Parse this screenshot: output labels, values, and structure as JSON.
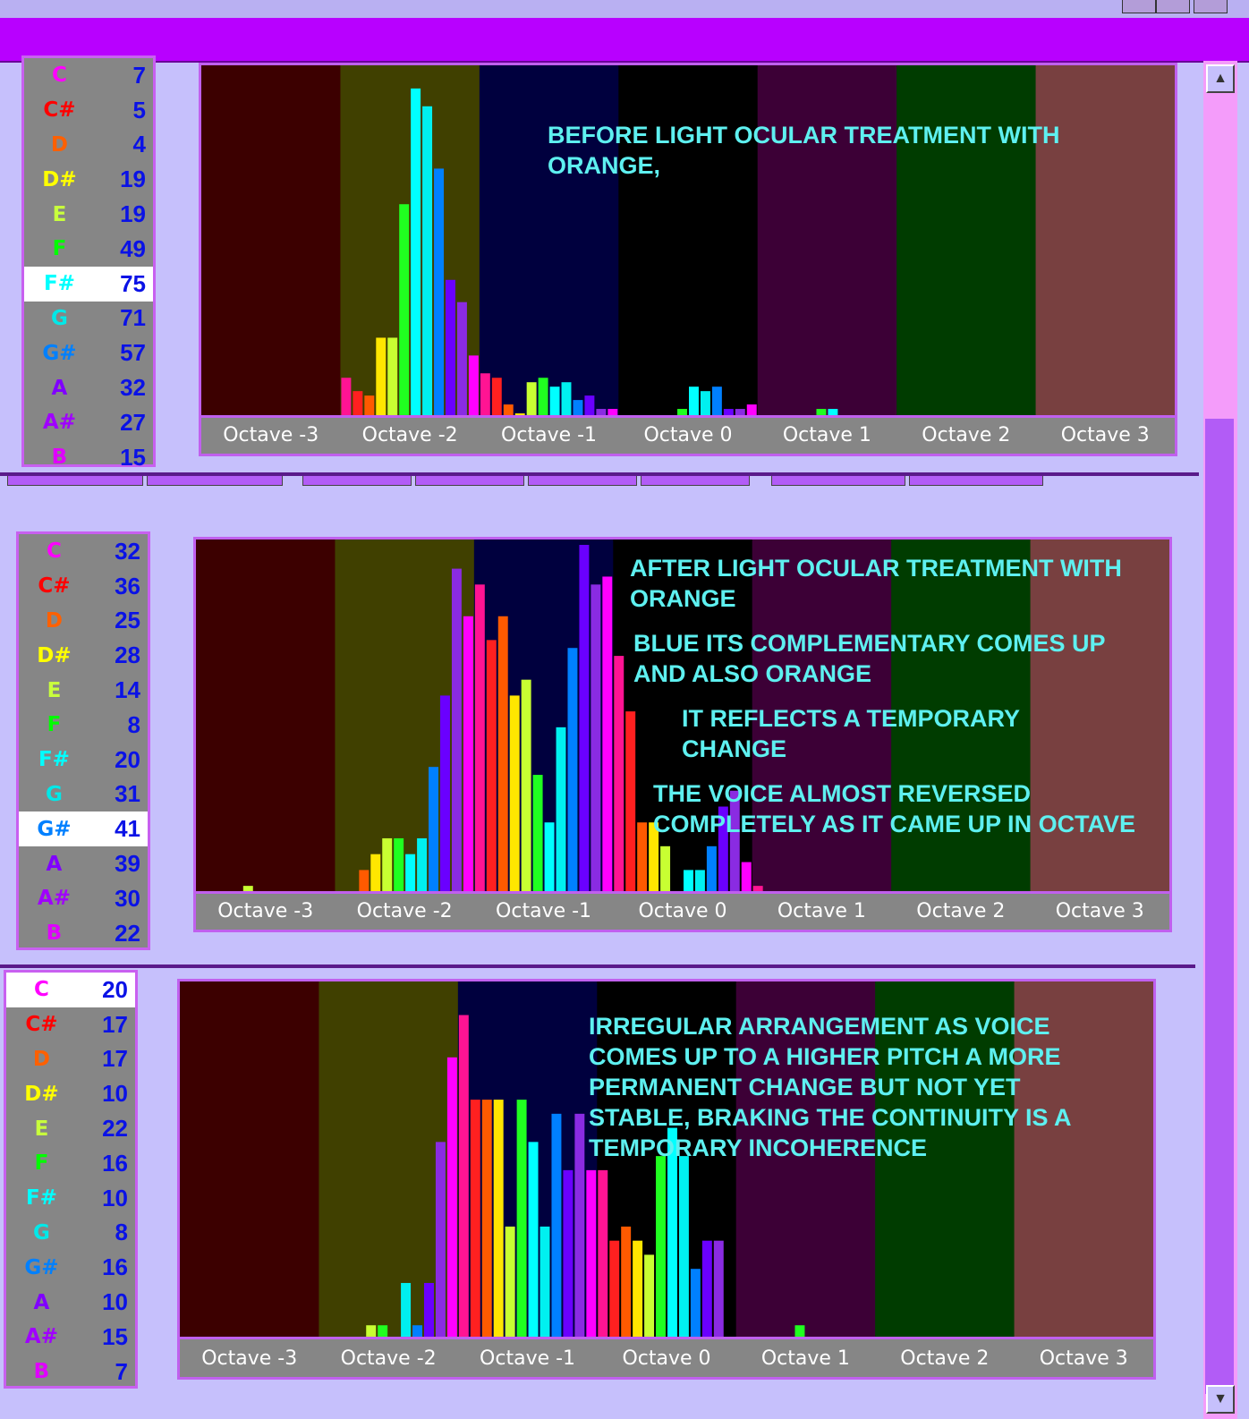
{
  "octave_labels": [
    "Octave -3",
    "Octave -2",
    "Octave -1",
    "Octave 0",
    "Octave 1",
    "Octave 2",
    "Octave 3"
  ],
  "band_colors": [
    "#3c0000",
    "#404000",
    "#00003e",
    "#000000",
    "#3c0036",
    "#003c00",
    "#784040"
  ],
  "note_colors": [
    "#ff00ff",
    "#ff0000",
    "#ff6000",
    "#ffff00",
    "#c8ff3c",
    "#00ff00",
    "#00ffff",
    "#00e8e8",
    "#0080ff",
    "#8000ff",
    "#a000ff",
    "#e000ff"
  ],
  "bar_colors": [
    "#ff1493",
    "#ff2020",
    "#ff5a00",
    "#ffe600",
    "#c8ff32",
    "#20ff20",
    "#00ffff",
    "#00f0f0",
    "#0080ff",
    "#6a00ff",
    "#8a2be2",
    "#ff00ff"
  ],
  "panels": [
    {
      "notes": [
        {
          "name": "C",
          "count": "7"
        },
        {
          "name": "C#",
          "count": "5"
        },
        {
          "name": "D",
          "count": "4"
        },
        {
          "name": "D#",
          "count": "19"
        },
        {
          "name": "E",
          "count": "19"
        },
        {
          "name": "F",
          "count": "49"
        },
        {
          "name": "F#",
          "count": "75",
          "selected": true
        },
        {
          "name": "G",
          "count": "71"
        },
        {
          "name": "G#",
          "count": "57"
        },
        {
          "name": "A",
          "count": "32"
        },
        {
          "name": "A#",
          "count": "27"
        },
        {
          "name": "B",
          "count": "15"
        }
      ],
      "annotation": [
        "BEFORE LIGHT OCULAR TREATMENT WITH",
        "ORANGE,"
      ]
    },
    {
      "notes": [
        {
          "name": "C",
          "count": "32"
        },
        {
          "name": "C#",
          "count": "36"
        },
        {
          "name": "D",
          "count": "25"
        },
        {
          "name": "D#",
          "count": "28"
        },
        {
          "name": "E",
          "count": "14"
        },
        {
          "name": "F",
          "count": "8"
        },
        {
          "name": "F#",
          "count": "20"
        },
        {
          "name": "G",
          "count": "31"
        },
        {
          "name": "G#",
          "count": "41",
          "selected": true
        },
        {
          "name": "A",
          "count": "39"
        },
        {
          "name": "A#",
          "count": "30"
        },
        {
          "name": "B",
          "count": "22"
        }
      ],
      "annotation": [
        "AFTER LIGHT OCULAR TREATMENT WITH",
        "ORANGE",
        "BLUE ITS COMPLEMENTARY COMES UP",
        "AND ALSO ORANGE",
        "IT REFLECTS A TEMPORARY",
        "CHANGE",
        "THE VOICE ALMOST REVERSED",
        "COMPLETELY AS IT CAME UP IN OCTAVE"
      ]
    },
    {
      "notes": [
        {
          "name": "C",
          "count": "20",
          "selected": true
        },
        {
          "name": "C#",
          "count": "17"
        },
        {
          "name": "D",
          "count": "17"
        },
        {
          "name": "D#",
          "count": "10"
        },
        {
          "name": "E",
          "count": "22"
        },
        {
          "name": "F",
          "count": "16"
        },
        {
          "name": "F#",
          "count": "10"
        },
        {
          "name": "G",
          "count": "8"
        },
        {
          "name": "G#",
          "count": "16"
        },
        {
          "name": "A",
          "count": "10"
        },
        {
          "name": "A#",
          "count": "15"
        },
        {
          "name": "B",
          "count": "7"
        }
      ],
      "annotation": [
        "IRREGULAR ARRANGEMENT AS VOICE",
        "COMES UP TO A HIGHER PITCH A MORE",
        "PERMANENT  CHANGE BUT NOT YET",
        "STABLE,  BRAKING THE CONTINUITY IS A",
        "TEMPORARY INCOHERENCE"
      ]
    }
  ],
  "chart_data": [
    {
      "type": "bar",
      "x": "note bins across octaves -3 to 3 (12 per octave)",
      "series": [
        {
          "values": [
            0,
            0,
            0,
            0,
            0,
            0,
            0,
            0,
            0,
            0,
            0,
            0,
            9,
            6,
            5,
            18,
            18,
            48,
            74,
            70,
            56,
            31,
            26,
            14,
            10,
            9,
            3,
            1,
            8,
            9,
            7,
            8,
            4,
            5,
            2,
            2,
            0,
            0,
            0,
            0,
            0,
            2,
            7,
            6,
            7,
            2,
            2,
            3,
            0,
            0,
            0,
            0,
            0,
            2,
            2,
            0,
            0,
            0,
            0,
            0,
            0,
            0,
            0,
            0,
            0,
            0,
            0,
            0,
            0,
            0,
            0,
            0,
            0,
            0,
            0,
            0,
            0,
            0,
            0,
            0,
            0,
            0,
            0,
            0
          ]
        }
      ],
      "ylim": [
        0,
        78
      ]
    },
    {
      "type": "bar",
      "x": "note bins across octaves -3 to 3 (12 per octave)",
      "series": [
        {
          "values": [
            0,
            0,
            0,
            0,
            1,
            0,
            0,
            0,
            0,
            0,
            0,
            0,
            0,
            0,
            3,
            5,
            7,
            7,
            5,
            7,
            16,
            25,
            41,
            35,
            39,
            32,
            35,
            25,
            27,
            15,
            9,
            21,
            31,
            44,
            39,
            40,
            30,
            23,
            9,
            9,
            6,
            0,
            3,
            3,
            6,
            11,
            13,
            4,
            1,
            0,
            0,
            0,
            0,
            0,
            0,
            0,
            0,
            0,
            0,
            0,
            0,
            0,
            0,
            0,
            0,
            0,
            0,
            0,
            0,
            0,
            0,
            0,
            0,
            0,
            0,
            0,
            0,
            0,
            0,
            0,
            0,
            0,
            0,
            0
          ]
        }
      ],
      "ylim": [
        0,
        44
      ]
    },
    {
      "type": "bar",
      "x": "note bins across octaves -3 to 3 (12 per octave)",
      "series": [
        {
          "values": [
            0,
            0,
            0,
            0,
            0,
            0,
            0,
            0,
            0,
            0,
            0,
            0,
            0,
            0,
            0,
            0,
            1,
            1,
            0,
            4,
            1,
            4,
            14,
            20,
            23,
            17,
            17,
            17,
            8,
            17,
            14,
            8,
            16,
            12,
            16,
            12,
            12,
            7,
            8,
            7,
            6,
            13,
            15,
            13,
            5,
            7,
            7,
            0,
            0,
            0,
            0,
            0,
            0,
            1,
            0,
            0,
            0,
            0,
            0,
            0,
            0,
            0,
            0,
            0,
            0,
            0,
            0,
            0,
            0,
            0,
            0,
            0,
            0,
            0,
            0,
            0,
            0,
            0,
            0,
            0,
            0,
            0,
            0,
            0
          ]
        }
      ],
      "ylim": [
        0,
        25
      ]
    }
  ]
}
